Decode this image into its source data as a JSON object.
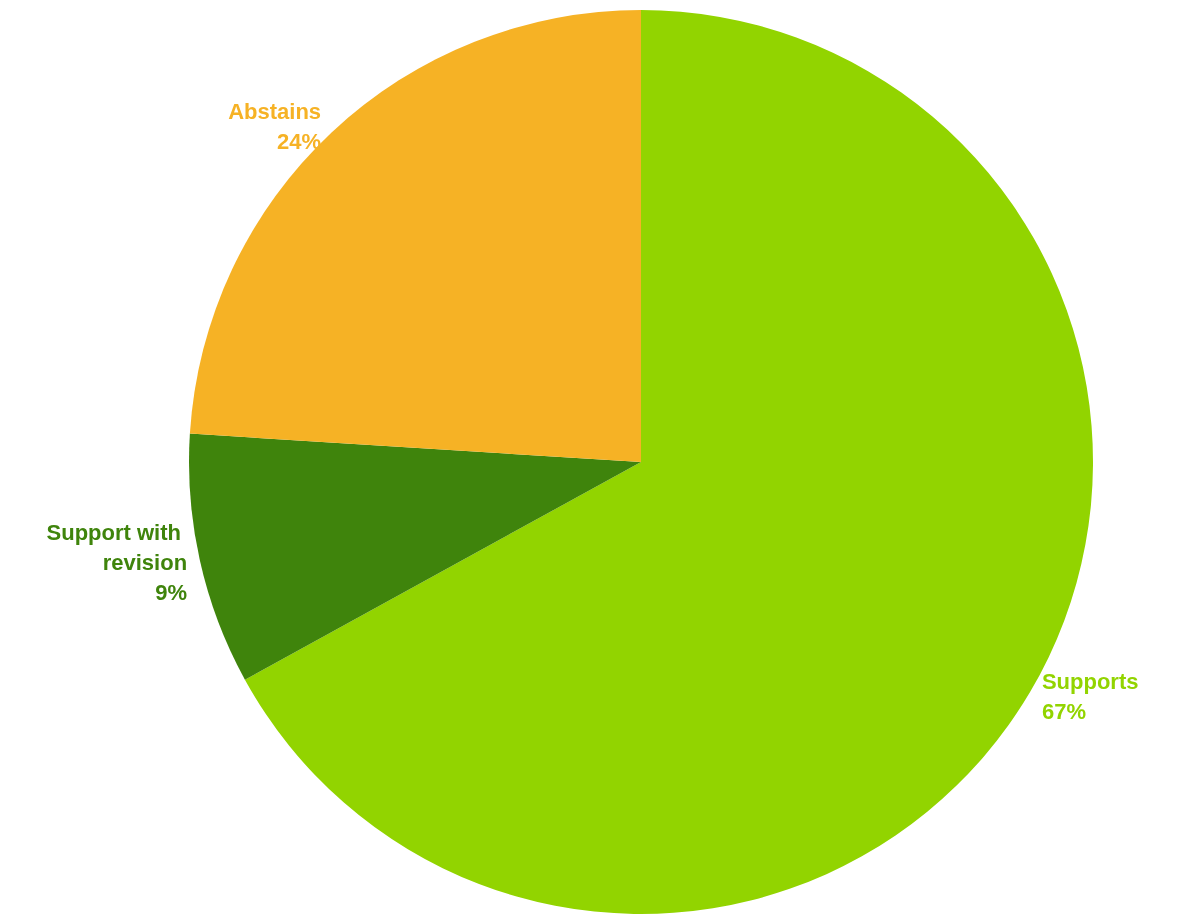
{
  "chart_data": {
    "type": "pie",
    "categories": [
      "Supports",
      "Support with revision",
      "Abstains"
    ],
    "values": [
      67,
      9,
      24
    ],
    "colors": [
      "#92d400",
      "#3f840c",
      "#f6b225"
    ],
    "value_labels": [
      "67%",
      "9%",
      "24%"
    ]
  }
}
